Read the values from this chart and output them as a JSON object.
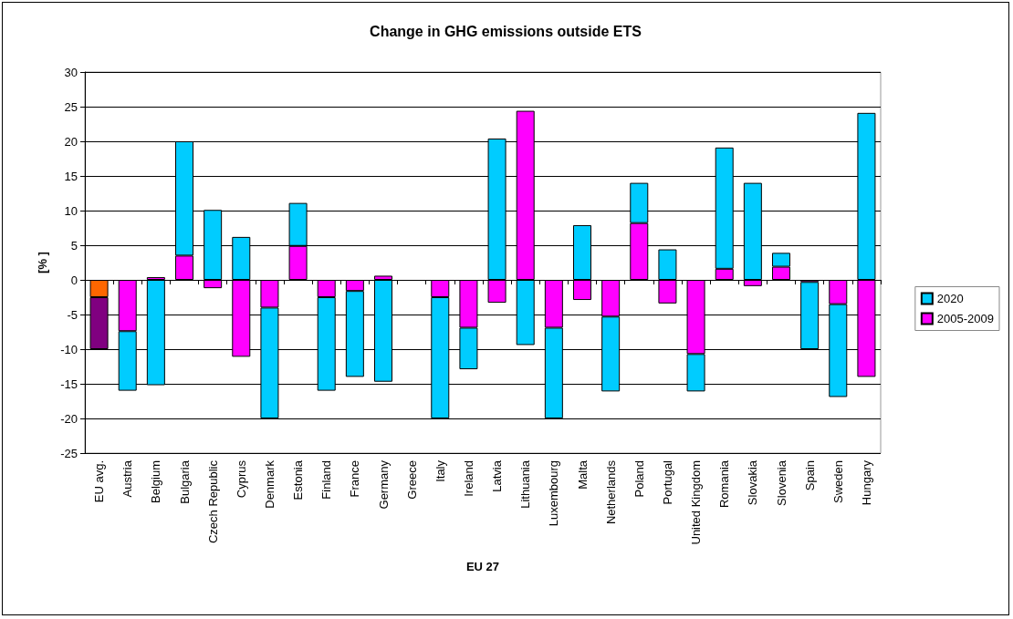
{
  "chart_data": {
    "type": "bar",
    "title": "Change in GHG emissions outside ETS",
    "xlabel": "EU 27",
    "ylabel": "[% ]",
    "categories": [
      "EU avg.",
      "Austria",
      "Belgium",
      "Bulgaria",
      "Czech Republic",
      "Cyprus",
      "Denmark",
      "Estonia",
      "Finland",
      "France",
      "Germany",
      "Greece",
      "Italy",
      "Ireland",
      "Latvia",
      "Lithuania",
      "Luxembourg",
      "Malta",
      "Netherlands",
      "Poland",
      "Portugal",
      "United Kingdom",
      "Romania",
      "Slovakia",
      "Slovenia",
      "Spain",
      "Sweden",
      "Hungary"
    ],
    "stacked": true,
    "series": [
      {
        "name": "2005-2009",
        "color": "#ff00ff",
        "colors": [
          "#ff6600",
          "#ff00ff",
          "#ff00ff",
          "#ff00ff",
          "#ff00ff",
          "#ff00ff",
          "#ff00ff",
          "#ff00ff",
          "#ff00ff",
          "#ff00ff",
          "#ff00ff",
          "#ff00ff",
          "#ff00ff",
          "#ff00ff",
          "#ff00ff",
          "#ff00ff",
          "#ff00ff",
          "#ff00ff",
          "#ff00ff",
          "#ff00ff",
          "#ff00ff",
          "#ff00ff",
          "#ff00ff",
          "#ff00ff",
          "#ff00ff",
          "#ff00ff",
          "#ff00ff",
          "#ff00ff"
        ],
        "values": [
          -2.5,
          -7.4,
          0.4,
          3.5,
          -1.2,
          -11.1,
          -4,
          4.9,
          -2.5,
          -1.6,
          0.6,
          null,
          -2.5,
          -6.9,
          -3.3,
          24.4,
          -6.9,
          -2.9,
          -5.3,
          8.2,
          -3.4,
          -10.7,
          1.6,
          -0.9,
          1.9,
          -0.3,
          -3.5,
          -14
        ]
      },
      {
        "name": "2020",
        "color": "#00ccff",
        "colors": [
          "#800080",
          "#00ccff",
          "#00ccff",
          "#00ccff",
          "#00ccff",
          "#00ccff",
          "#00ccff",
          "#00ccff",
          "#00ccff",
          "#00ccff",
          "#00ccff",
          "#00ccff",
          "#00ccff",
          "#00ccff",
          "#00ccff",
          "#00ccff",
          "#00ccff",
          "#00ccff",
          "#00ccff",
          "#00ccff",
          "#00ccff",
          "#00ccff",
          "#00ccff",
          "#00ccff",
          "#00ccff",
          "#00ccff",
          "#00ccff",
          "#00ccff"
        ],
        "values": [
          -7.5,
          -8.6,
          -15.2,
          16.5,
          10.1,
          6.2,
          -16,
          6.2,
          -13.5,
          -12.4,
          -14.7,
          null,
          -17.5,
          -6,
          20.4,
          -9.4,
          -13.1,
          7.9,
          -10.8,
          5.8,
          4.4,
          -5.4,
          17.5,
          14,
          2,
          -9.7,
          -13.4,
          24.1
        ]
      }
    ],
    "ylim": [
      -25,
      30
    ],
    "yticks": [
      -25,
      -20,
      -15,
      -10,
      -5,
      0,
      5,
      10,
      15,
      20,
      25,
      30
    ],
    "grid": "y",
    "legend": "right"
  }
}
